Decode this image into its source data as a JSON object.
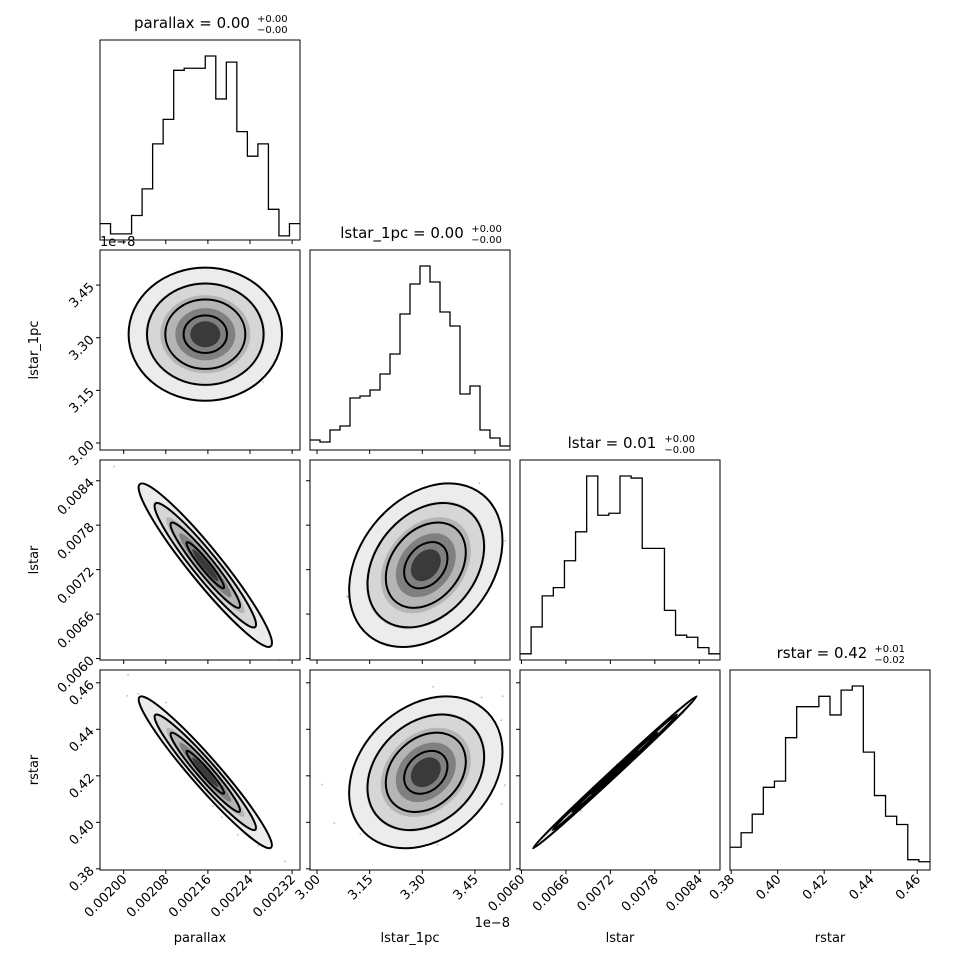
{
  "chart_data": {
    "type": "corner",
    "parameters": [
      "parallax",
      "lstar_1pc",
      "lstar",
      "rstar"
    ],
    "titles": {
      "parallax": {
        "base": "parallax = 0.00",
        "sup": "+0.00",
        "sub": "−0.00"
      },
      "lstar_1pc": {
        "base": "lstar_1pc = 0.00",
        "sup": "+0.00",
        "sub": "−0.00"
      },
      "lstar": {
        "base": "lstar = 0.01",
        "sup": "+0.00",
        "sub": "−0.00"
      },
      "rstar": {
        "base": "rstar = 0.42",
        "sup": "+0.01",
        "sub": "−0.02"
      }
    },
    "ranges": {
      "parallax": [
        0.001955,
        0.002335
      ],
      "lstar_1pc": [
        2.98e-08,
        3.55e-08
      ],
      "lstar": [
        0.00598,
        0.00868
      ],
      "rstar": [
        0.3795,
        0.4655
      ]
    },
    "ticks": {
      "parallax": {
        "values": [
          0.002,
          0.00208,
          0.00216,
          0.00224,
          0.00232
        ],
        "labels": [
          "0.00200",
          "0.00208",
          "0.00216",
          "0.00224",
          "0.00232"
        ]
      },
      "lstar_1pc": {
        "values": [
          3e-08,
          3.15e-08,
          3.3e-08,
          3.45e-08
        ],
        "labels": [
          "3.00",
          "3.15",
          "3.30",
          "3.45"
        ],
        "offset": "1e−8"
      },
      "lstar": {
        "values": [
          0.006,
          0.0066,
          0.0072,
          0.0078,
          0.0084
        ],
        "labels": [
          "0.0060",
          "0.0066",
          "0.0072",
          "0.0078",
          "0.0084"
        ]
      },
      "rstar": {
        "values": [
          0.38,
          0.4,
          0.42,
          0.44,
          0.46
        ],
        "labels": [
          "0.38",
          "0.40",
          "0.42",
          "0.44",
          "0.46"
        ]
      }
    },
    "histograms": {
      "parallax": [
        0.08,
        0.03,
        0.03,
        0.12,
        0.25,
        0.47,
        0.59,
        0.83,
        0.84,
        0.84,
        0.9,
        0.69,
        0.87,
        0.53,
        0.41,
        0.47,
        0.15,
        0.02,
        0.08
      ],
      "lstar_1pc": [
        0.05,
        0.04,
        0.1,
        0.12,
        0.26,
        0.27,
        0.3,
        0.38,
        0.48,
        0.68,
        0.83,
        0.92,
        0.84,
        0.69,
        0.62,
        0.28,
        0.32,
        0.1,
        0.06,
        0.02
      ],
      "lstar": [
        0.03,
        0.16,
        0.31,
        0.35,
        0.48,
        0.62,
        0.89,
        0.7,
        0.71,
        0.89,
        0.88,
        0.54,
        0.54,
        0.24,
        0.12,
        0.11,
        0.06,
        0.03
      ],
      "rstar": [
        0.11,
        0.18,
        0.27,
        0.4,
        0.43,
        0.64,
        0.79,
        0.79,
        0.84,
        0.75,
        0.87,
        0.89,
        0.57,
        0.36,
        0.26,
        0.22,
        0.05,
        0.04
      ]
    },
    "correlations": {
      "lstar_1pc|parallax": 0.0,
      "lstar|parallax": -0.95,
      "lstar|lstar_1pc": 0.3,
      "rstar|parallax": -0.96,
      "rstar|lstar_1pc": 0.27,
      "rstar|lstar": 0.998
    },
    "centers": {
      "parallax": 0.002155,
      "lstar_1pc": 3.31e-08,
      "lstar": 0.00726,
      "rstar": 0.4215
    },
    "spreads": {
      "parallax": 5.5e-05,
      "lstar_1pc": 9.5e-10,
      "lstar": 0.00048,
      "rstar": 0.0142
    },
    "contour_levels_sigma": [
      0.5,
      1.0,
      1.5,
      2.0
    ]
  }
}
